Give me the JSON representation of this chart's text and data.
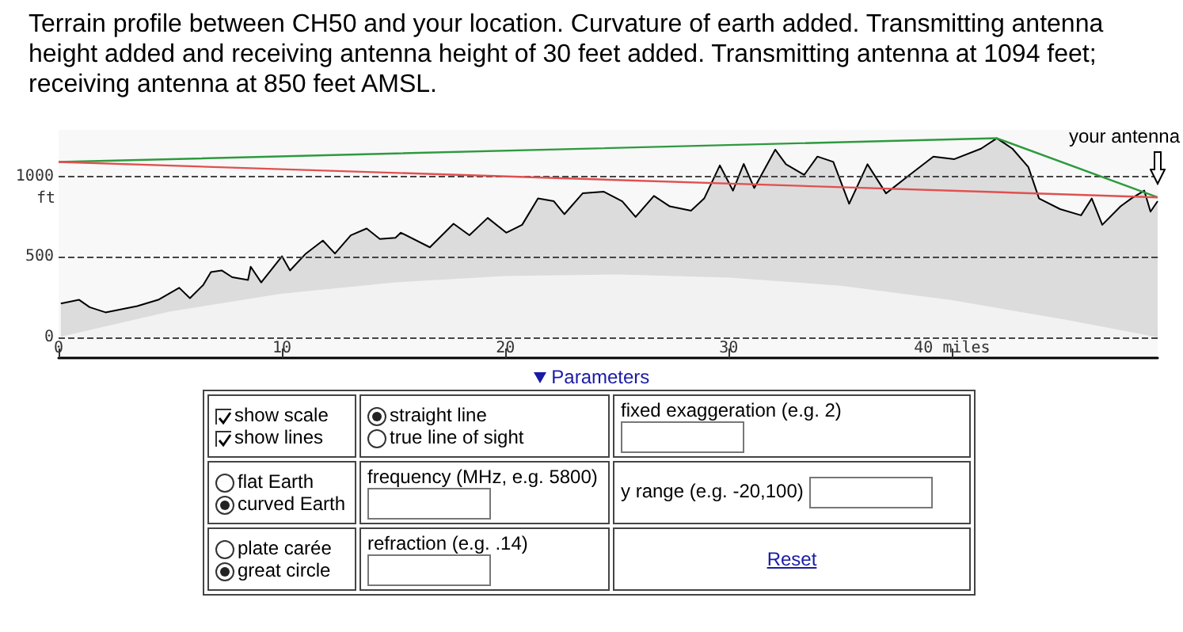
{
  "chart_data": {
    "type": "area",
    "title": "Terrain profile between CH50 and your location. Curvature of earth added. Transmitting antenna height added and receiving antenna height of 30 feet added. Transmitting antenna at 1094 feet; receiving antenna at 850 feet AMSL.",
    "ylabel": "ft",
    "xlim": [
      0,
      49.2
    ],
    "xticks": [
      0,
      10,
      20,
      30,
      {
        "value": 40,
        "label": "40 miles"
      }
    ],
    "ylim": [
      -130,
      1290
    ],
    "yticks": [
      0,
      500,
      1000
    ],
    "grid": "y",
    "marker": "none",
    "annotations": [
      {
        "text": "your antenna",
        "x": 49.2,
        "y": 870
      },
      "Parameters",
      "show scale",
      "show lines",
      "straight line",
      "true line of sight",
      "fixed exaggeration (e.g. 2)",
      "flat Earth",
      "curved Earth",
      "frequency (MHz, e.g. 5800)",
      "y range (e.g. -20,100)",
      "plate carée",
      "great circle",
      "refraction (e.g. .14)",
      "Reset"
    ],
    "series": [
      {
        "color": "#dcdcdc",
        "x": [
          0.1,
          0.92,
          1.39,
          2.1,
          3.52,
          4.46,
          5.4,
          5.88,
          6.47,
          6.82,
          7.3,
          7.77,
          8.48,
          8.6,
          9.07,
          10.0,
          10.36,
          11.07,
          11.83,
          12.37,
          13.08,
          13.79,
          14.38,
          15.08,
          15.32,
          16.62,
          17.68,
          18.39,
          19.21,
          20.04,
          20.75,
          21.46,
          22.17,
          22.64,
          23.46,
          24.41,
          25.23,
          25.83,
          26.65,
          27.36,
          28.31,
          28.9,
          29.6,
          30.19,
          30.67,
          31.14,
          32.08,
          32.56,
          33.38,
          33.97,
          34.68,
          35.39,
          36.21,
          37.04,
          38.1,
          39.16,
          40.1,
          41.29,
          42.0,
          42.7,
          43.41,
          43.89,
          44.83,
          45.77,
          46.25,
          46.72,
          47.54,
          48.02,
          48.6,
          48.88,
          49.2
        ],
        "values": [
          209,
          232,
          186,
          154,
          193,
          232,
          307,
          242,
          324,
          405,
          415,
          373,
          356,
          438,
          340,
          503,
          415,
          520,
          601,
          520,
          634,
          676,
          611,
          618,
          650,
          559,
          706,
          634,
          742,
          650,
          699,
          863,
          846,
          765,
          895,
          905,
          846,
          748,
          879,
          814,
          787,
          863,
          1069,
          912,
          1078,
          928,
          1167,
          1076,
          1010,
          1124,
          1091,
          830,
          1076,
          895,
          1010,
          1124,
          1108,
          1173,
          1238,
          1173,
          1059,
          863,
          797,
          758,
          863,
          699,
          814,
          863,
          912,
          781,
          846
        ]
      },
      {
        "color": "#f2f2f2",
        "x": [
          0,
          5,
          10,
          15,
          20,
          25,
          30,
          35,
          40,
          45,
          49.2
        ],
        "values": [
          0,
          160,
          270,
          340,
          380,
          390,
          370,
          320,
          230,
          110,
          0
        ]
      },
      {
        "type": "line",
        "color": "#2e9a3e",
        "x": [
          0,
          42.0,
          49.2
        ],
        "values": [
          1090,
          1238,
          870
        ]
      },
      {
        "type": "line",
        "color": "#e05050",
        "x": [
          0,
          49.2
        ],
        "values": [
          1090,
          870
        ]
      }
    ]
  }
}
